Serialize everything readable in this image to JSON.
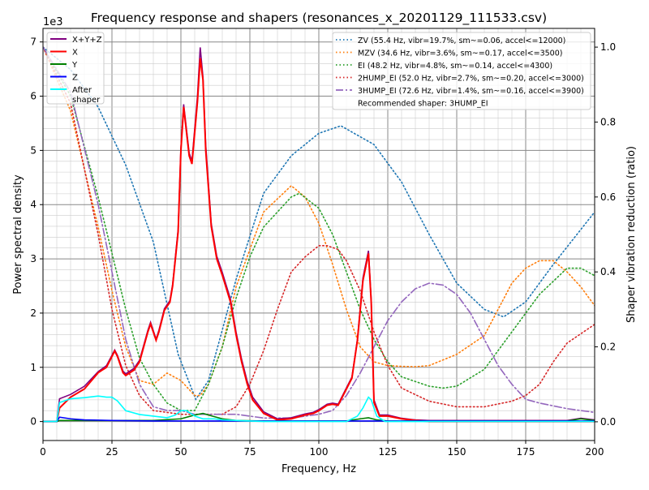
{
  "chart_data": {
    "type": "line",
    "title": "Frequency response and shapers (resonances_x_20201129_111533.csv)",
    "xlabel": "Frequency, Hz",
    "ylabel": "Power spectral density",
    "ylabel_right": "Shaper vibration reduction (ratio)",
    "y_offset_label": "1e3",
    "xlim": [
      0,
      200
    ],
    "ylim": [
      -0.35,
      7.25
    ],
    "ylim_right": [
      -0.05,
      1.05
    ],
    "xticks": [
      0,
      25,
      50,
      75,
      100,
      125,
      150,
      175,
      200
    ],
    "yticks": [
      0,
      1,
      2,
      3,
      4,
      5,
      6,
      7
    ],
    "yticks_right": [
      "0.0",
      "0.2",
      "0.4",
      "0.6",
      "0.8",
      "1.0"
    ],
    "grid": true,
    "legend_left": "top-left",
    "legend_right": "top-right",
    "recommended": "Recommended shaper: 3HUMP_EI",
    "psd_series": [
      {
        "name": "X+Y+Z",
        "color": "#800080",
        "x": [
          0,
          5,
          6,
          10,
          15,
          20,
          23,
          25,
          26,
          27,
          29,
          30,
          33,
          35,
          38,
          39,
          41,
          42,
          44,
          46,
          47,
          49,
          50,
          51,
          53,
          54,
          56,
          57,
          58,
          59,
          61,
          63,
          65,
          68,
          70,
          72,
          74,
          76,
          80,
          85,
          90,
          95,
          98,
          100,
          103,
          105,
          107,
          110,
          112,
          114,
          116,
          118,
          119,
          120,
          122,
          125,
          130,
          135,
          140,
          190,
          195,
          200
        ],
        "y": [
          0,
          0,
          0.42,
          0.5,
          0.65,
          0.92,
          1.03,
          1.22,
          1.32,
          1.22,
          0.93,
          0.88,
          0.98,
          1.13,
          1.68,
          1.83,
          1.52,
          1.68,
          2.08,
          2.23,
          2.53,
          3.55,
          5.05,
          5.85,
          4.95,
          4.8,
          6.0,
          6.9,
          6.35,
          5.1,
          3.65,
          3.05,
          2.75,
          2.25,
          1.65,
          1.15,
          0.75,
          0.45,
          0.18,
          0.05,
          0.07,
          0.14,
          0.17,
          0.22,
          0.32,
          0.34,
          0.32,
          0.62,
          0.82,
          1.52,
          2.65,
          3.15,
          2.25,
          0.4,
          0.12,
          0.12,
          0.06,
          0.03,
          0.02,
          0.02,
          0.06,
          0.03
        ]
      },
      {
        "name": "X",
        "color": "#ff0000",
        "x": [
          0,
          5,
          6,
          10,
          15,
          20,
          23,
          25,
          26,
          27,
          29,
          30,
          33,
          35,
          38,
          39,
          41,
          42,
          44,
          46,
          47,
          49,
          50,
          51,
          53,
          54,
          56,
          57,
          58,
          59,
          61,
          63,
          65,
          68,
          70,
          72,
          74,
          76,
          80,
          85,
          90,
          95,
          98,
          100,
          103,
          105,
          107,
          110,
          112,
          114,
          116,
          118,
          119,
          120,
          122,
          125,
          130,
          135,
          140,
          200
        ],
        "y": [
          0,
          0,
          0.25,
          0.45,
          0.6,
          0.9,
          1.0,
          1.2,
          1.3,
          1.2,
          0.9,
          0.85,
          0.95,
          1.1,
          1.65,
          1.8,
          1.5,
          1.65,
          2.05,
          2.2,
          2.5,
          3.5,
          5.0,
          5.8,
          4.9,
          4.75,
          5.9,
          6.7,
          6.3,
          5.0,
          3.6,
          3.0,
          2.7,
          2.2,
          1.6,
          1.1,
          0.7,
          0.4,
          0.15,
          0.03,
          0.05,
          0.12,
          0.15,
          0.2,
          0.3,
          0.32,
          0.3,
          0.6,
          0.8,
          1.5,
          2.6,
          3.1,
          2.2,
          0.35,
          0.1,
          0.1,
          0.05,
          0.02,
          0,
          0
        ]
      },
      {
        "name": "Y",
        "color": "#008000",
        "x": [
          0,
          5,
          6,
          20,
          40,
          50,
          55,
          58,
          60,
          65,
          70,
          80,
          110,
          115,
          118,
          121,
          125,
          190,
          195,
          200
        ],
        "y": [
          0,
          0,
          0.02,
          0.02,
          0.02,
          0.05,
          0.12,
          0.15,
          0.12,
          0.05,
          0.02,
          0.01,
          0.01,
          0.05,
          0.07,
          0.03,
          0.01,
          0.01,
          0.05,
          0.02
        ]
      },
      {
        "name": "Z",
        "color": "#0000ff",
        "x": [
          0,
          5,
          6,
          10,
          15,
          25,
          40,
          60,
          100,
          200
        ],
        "y": [
          0,
          0,
          0.08,
          0.05,
          0.03,
          0.02,
          0.01,
          0.01,
          0.01,
          0.01
        ]
      },
      {
        "name": "After\nshaper",
        "color": "#00ffff",
        "x": [
          0,
          5,
          6,
          10,
          15,
          20,
          23,
          25,
          27,
          30,
          35,
          40,
          45,
          48,
          50,
          52,
          55,
          58,
          62,
          65,
          70,
          80,
          110,
          114,
          116,
          118,
          119,
          121,
          124,
          200
        ],
        "y": [
          0,
          0,
          0.35,
          0.42,
          0.44,
          0.47,
          0.45,
          0.45,
          0.38,
          0.2,
          0.13,
          0.1,
          0.07,
          0.12,
          0.2,
          0.2,
          0.1,
          0.05,
          0.05,
          0.03,
          0.02,
          0,
          0,
          0.1,
          0.25,
          0.45,
          0.4,
          0.1,
          0,
          0
        ]
      }
    ],
    "shaper_series": [
      {
        "name": "ZV (55.4 Hz, vibr=19.7%, sm~=0.06, accel<=12000)",
        "color": "#1f77b4",
        "style": "dotted",
        "x": [
          0,
          10,
          20,
          30,
          40,
          49,
          55.4,
          60,
          70,
          80,
          90,
          100,
          108,
          120,
          130,
          140,
          150,
          160,
          167,
          175,
          185,
          200
        ],
        "y": [
          1.0,
          0.94,
          0.84,
          0.685,
          0.48,
          0.18,
          0.06,
          0.11,
          0.38,
          0.61,
          0.71,
          0.77,
          0.79,
          0.74,
          0.64,
          0.5,
          0.37,
          0.3,
          0.28,
          0.32,
          0.42,
          0.56
        ]
      },
      {
        "name": "MZV (34.6 Hz, vibr=3.6%, sm~=0.17, accel<=3500)",
        "color": "#ff7f0e",
        "style": "dotted",
        "x": [
          0,
          10,
          20,
          25,
          30,
          35,
          40,
          45,
          50,
          55,
          57,
          60,
          65,
          70,
          80,
          90,
          95,
          100,
          105,
          110,
          115,
          120,
          125,
          130,
          135,
          140,
          150,
          160,
          165,
          170,
          175,
          180,
          185,
          190,
          195,
          200
        ],
        "y": [
          1.0,
          0.83,
          0.52,
          0.35,
          0.2,
          0.11,
          0.1,
          0.13,
          0.11,
          0.07,
          0.07,
          0.1,
          0.2,
          0.36,
          0.56,
          0.63,
          0.6,
          0.53,
          0.42,
          0.3,
          0.2,
          0.16,
          0.15,
          0.148,
          0.147,
          0.15,
          0.18,
          0.23,
          0.3,
          0.37,
          0.41,
          0.43,
          0.43,
          0.4,
          0.36,
          0.31
        ]
      },
      {
        "name": "EI (48.2 Hz, vibr=4.8%, sm~=0.14, accel<=4300)",
        "color": "#2ca02c",
        "style": "dotted",
        "x": [
          0,
          10,
          20,
          25,
          30,
          35,
          40,
          45,
          50,
          55,
          60,
          65,
          70,
          75,
          80,
          90,
          93,
          100,
          105,
          110,
          115,
          120,
          125,
          130,
          140,
          145,
          150,
          160,
          170,
          180,
          190,
          195,
          200
        ],
        "y": [
          1.0,
          0.87,
          0.6,
          0.45,
          0.3,
          0.17,
          0.1,
          0.05,
          0.03,
          0.03,
          0.1,
          0.2,
          0.33,
          0.44,
          0.52,
          0.6,
          0.61,
          0.57,
          0.5,
          0.4,
          0.3,
          0.22,
          0.16,
          0.12,
          0.095,
          0.09,
          0.095,
          0.14,
          0.24,
          0.34,
          0.41,
          0.41,
          0.39
        ]
      },
      {
        "name": "2HUMP_EI (52.0 Hz, vibr=2.7%, sm~=0.20, accel<=3000)",
        "color": "#d62728",
        "style": "dotted",
        "x": [
          0,
          10,
          20,
          25,
          30,
          35,
          40,
          50,
          60,
          65,
          70,
          75,
          80,
          85,
          90,
          95,
          100,
          103,
          107,
          110,
          115,
          120,
          125,
          130,
          140,
          150,
          160,
          170,
          175,
          180,
          185,
          190,
          200
        ],
        "y": [
          1.0,
          0.85,
          0.5,
          0.3,
          0.15,
          0.07,
          0.03,
          0.02,
          0.02,
          0.02,
          0.04,
          0.1,
          0.19,
          0.3,
          0.4,
          0.44,
          0.47,
          0.47,
          0.46,
          0.43,
          0.35,
          0.24,
          0.15,
          0.09,
          0.055,
          0.04,
          0.04,
          0.055,
          0.07,
          0.1,
          0.16,
          0.21,
          0.26
        ]
      },
      {
        "name": "3HUMP_EI (72.6 Hz, vibr=1.4%, sm~=0.16, accel<=3900)",
        "color": "#9467bd",
        "style": "dashdot",
        "x": [
          0,
          10,
          20,
          25,
          30,
          35,
          40,
          45,
          50,
          55,
          60,
          70,
          80,
          90,
          100,
          105,
          110,
          115,
          120,
          125,
          130,
          135,
          140,
          145,
          150,
          155,
          160,
          165,
          170,
          175,
          180,
          190,
          200
        ],
        "y": [
          1.0,
          0.88,
          0.58,
          0.4,
          0.22,
          0.1,
          0.04,
          0.03,
          0.03,
          0.02,
          0.02,
          0.02,
          0.01,
          0.01,
          0.02,
          0.03,
          0.07,
          0.13,
          0.2,
          0.27,
          0.32,
          0.355,
          0.37,
          0.365,
          0.34,
          0.29,
          0.22,
          0.15,
          0.1,
          0.06,
          0.05,
          0.035,
          0.025
        ]
      }
    ]
  }
}
